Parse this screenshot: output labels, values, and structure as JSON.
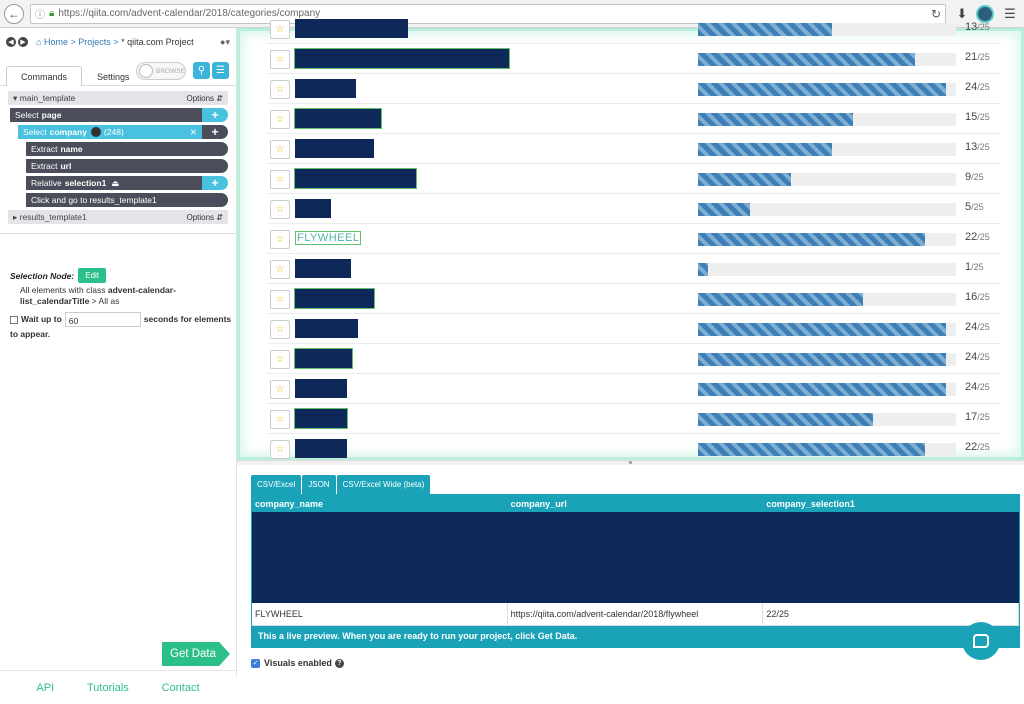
{
  "browser": {
    "url": "https://qiita.com/advent-calendar/2018/categories/company"
  },
  "toolbar": {
    "breadcrumb_home": "Home",
    "breadcrumb_projects": "Projects",
    "breadcrumb_sep": ">",
    "project_name": "* qiita.com Project",
    "tab_commands": "Commands",
    "tab_settings": "Settings",
    "browse_label": "BROWSE"
  },
  "commands": {
    "main_template": "main_template",
    "options_label": "Options",
    "select_page_prefix": "Select",
    "select_page_target": "page",
    "select_company_prefix": "Select",
    "select_company_target": "company",
    "select_company_count": "(248)",
    "extract_name_prefix": "Extract",
    "extract_name_target": "name",
    "extract_url_prefix": "Extract",
    "extract_url_target": "url",
    "relative_prefix": "Relative",
    "relative_target": "selection1",
    "click_go": "Click and go to results_template1",
    "results_template": "results_template1"
  },
  "selection_node": {
    "label": "Selection Node:",
    "edit_label": "Edit",
    "description_pre": "All elements with class",
    "class_name": "advent-calendar-list_calendarTitle",
    "description_post": "> All as"
  },
  "wait": {
    "label_pre": "Wait up to",
    "seconds": "60",
    "label_post": "seconds for elements to appear."
  },
  "get_data_label": "Get Data",
  "footer": {
    "api": "API",
    "tutorials": "Tutorials",
    "contact": "Contact"
  },
  "page_rows": [
    {
      "score": "13",
      "total": "/25",
      "fill": 0.52,
      "redact_w": 113,
      "top": -14
    },
    {
      "score": "21",
      "total": "/25",
      "fill": 0.84,
      "redact_w": 214,
      "top": 16
    },
    {
      "score": "24",
      "total": "/25",
      "fill": 0.96,
      "redact_w": 61,
      "top": 46
    },
    {
      "score": "15",
      "total": "/25",
      "fill": 0.6,
      "redact_w": 86,
      "top": 76
    },
    {
      "score": "13",
      "total": "/25",
      "fill": 0.52,
      "redact_w": 79,
      "top": 106
    },
    {
      "score": "9",
      "total": "/25",
      "fill": 0.36,
      "redact_w": 121,
      "top": 136
    },
    {
      "score": "5",
      "total": "/25",
      "fill": 0.2,
      "redact_w": 36,
      "top": 166
    },
    {
      "score": "22",
      "total": "/25",
      "fill": 0.88,
      "redact_w": 0,
      "top": 196,
      "text": "FLYWHEEL"
    },
    {
      "score": "1",
      "total": "/25",
      "fill": 0.04,
      "redact_w": 56,
      "top": 226
    },
    {
      "score": "16",
      "total": "/25",
      "fill": 0.64,
      "redact_w": 79,
      "top": 256
    },
    {
      "score": "24",
      "total": "/25",
      "fill": 0.96,
      "redact_w": 63,
      "top": 286
    },
    {
      "score": "24",
      "total": "/25",
      "fill": 0.96,
      "redact_w": 57,
      "top": 316
    },
    {
      "score": "24",
      "total": "/25",
      "fill": 0.96,
      "redact_w": 52,
      "top": 346
    },
    {
      "score": "17",
      "total": "/25",
      "fill": 0.68,
      "redact_w": 52,
      "top": 376
    },
    {
      "score": "22",
      "total": "/25",
      "fill": 0.88,
      "redact_w": 52,
      "top": 406
    }
  ],
  "preview": {
    "tabs": [
      "CSV/Excel",
      "JSON",
      "CSV/Excel Wide (beta)"
    ],
    "columns": [
      "company_name",
      "company_url",
      "company_selection1"
    ],
    "row": [
      "FLYWHEEL",
      "https://qiita.com/advent-calendar/2018/flywheel",
      "22/25"
    ],
    "note": "This a live preview. When you are ready to run your project, click Get Data.",
    "visuals_label": "Visuals enabled"
  }
}
